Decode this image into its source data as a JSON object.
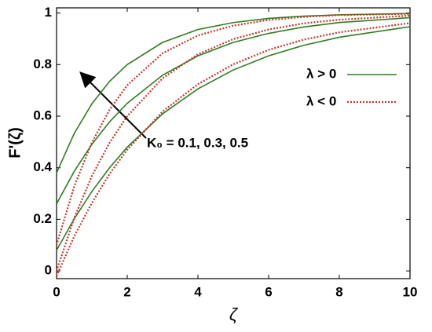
{
  "chart_data": {
    "type": "line",
    "x": [
      0,
      0.5,
      1,
      1.5,
      2,
      3,
      4,
      5,
      6,
      7,
      8,
      10
    ],
    "series": [
      {
        "name": "λ > 0",
        "color": "#2e7d1f",
        "dash": false,
        "values": [
          [
            0.38,
            0.533,
            0.648,
            0.735,
            0.8,
            0.886,
            0.936,
            0.963,
            0.979,
            0.988,
            0.993,
            0.998
          ],
          [
            0.26,
            0.386,
            0.491,
            0.578,
            0.65,
            0.759,
            0.834,
            0.886,
            0.921,
            0.946,
            0.963,
            0.982
          ],
          [
            0.08,
            0.202,
            0.308,
            0.4,
            0.48,
            0.609,
            0.706,
            0.779,
            0.834,
            0.875,
            0.906,
            0.947
          ]
        ]
      },
      {
        "name": "λ < 0",
        "color": "#c0392b",
        "dash": true,
        "values": [
          [
            0.1,
            0.328,
            0.498,
            0.625,
            0.72,
            0.844,
            0.913,
            0.951,
            0.973,
            0.985,
            0.992,
            0.997
          ],
          [
            0,
            0.205,
            0.368,
            0.497,
            0.6,
            0.747,
            0.84,
            0.899,
            0.936,
            0.96,
            0.974,
            0.99
          ],
          [
            -0.02,
            0.134,
            0.264,
            0.376,
            0.47,
            0.618,
            0.724,
            0.801,
            0.857,
            0.897,
            0.925,
            0.961
          ]
        ]
      }
    ],
    "xlabel": "ζ",
    "ylabel": "F'(ζ)",
    "annotation": "K₀ = 0.1, 0.3, 0.5",
    "xlim": [
      0,
      10
    ],
    "xticks": [
      0,
      2,
      4,
      6,
      8,
      10
    ],
    "ylim": [
      -0.03,
      1.02
    ],
    "yticks": [
      0,
      0.2,
      0.4,
      0.6,
      0.8,
      1
    ],
    "legend": "upper right"
  }
}
